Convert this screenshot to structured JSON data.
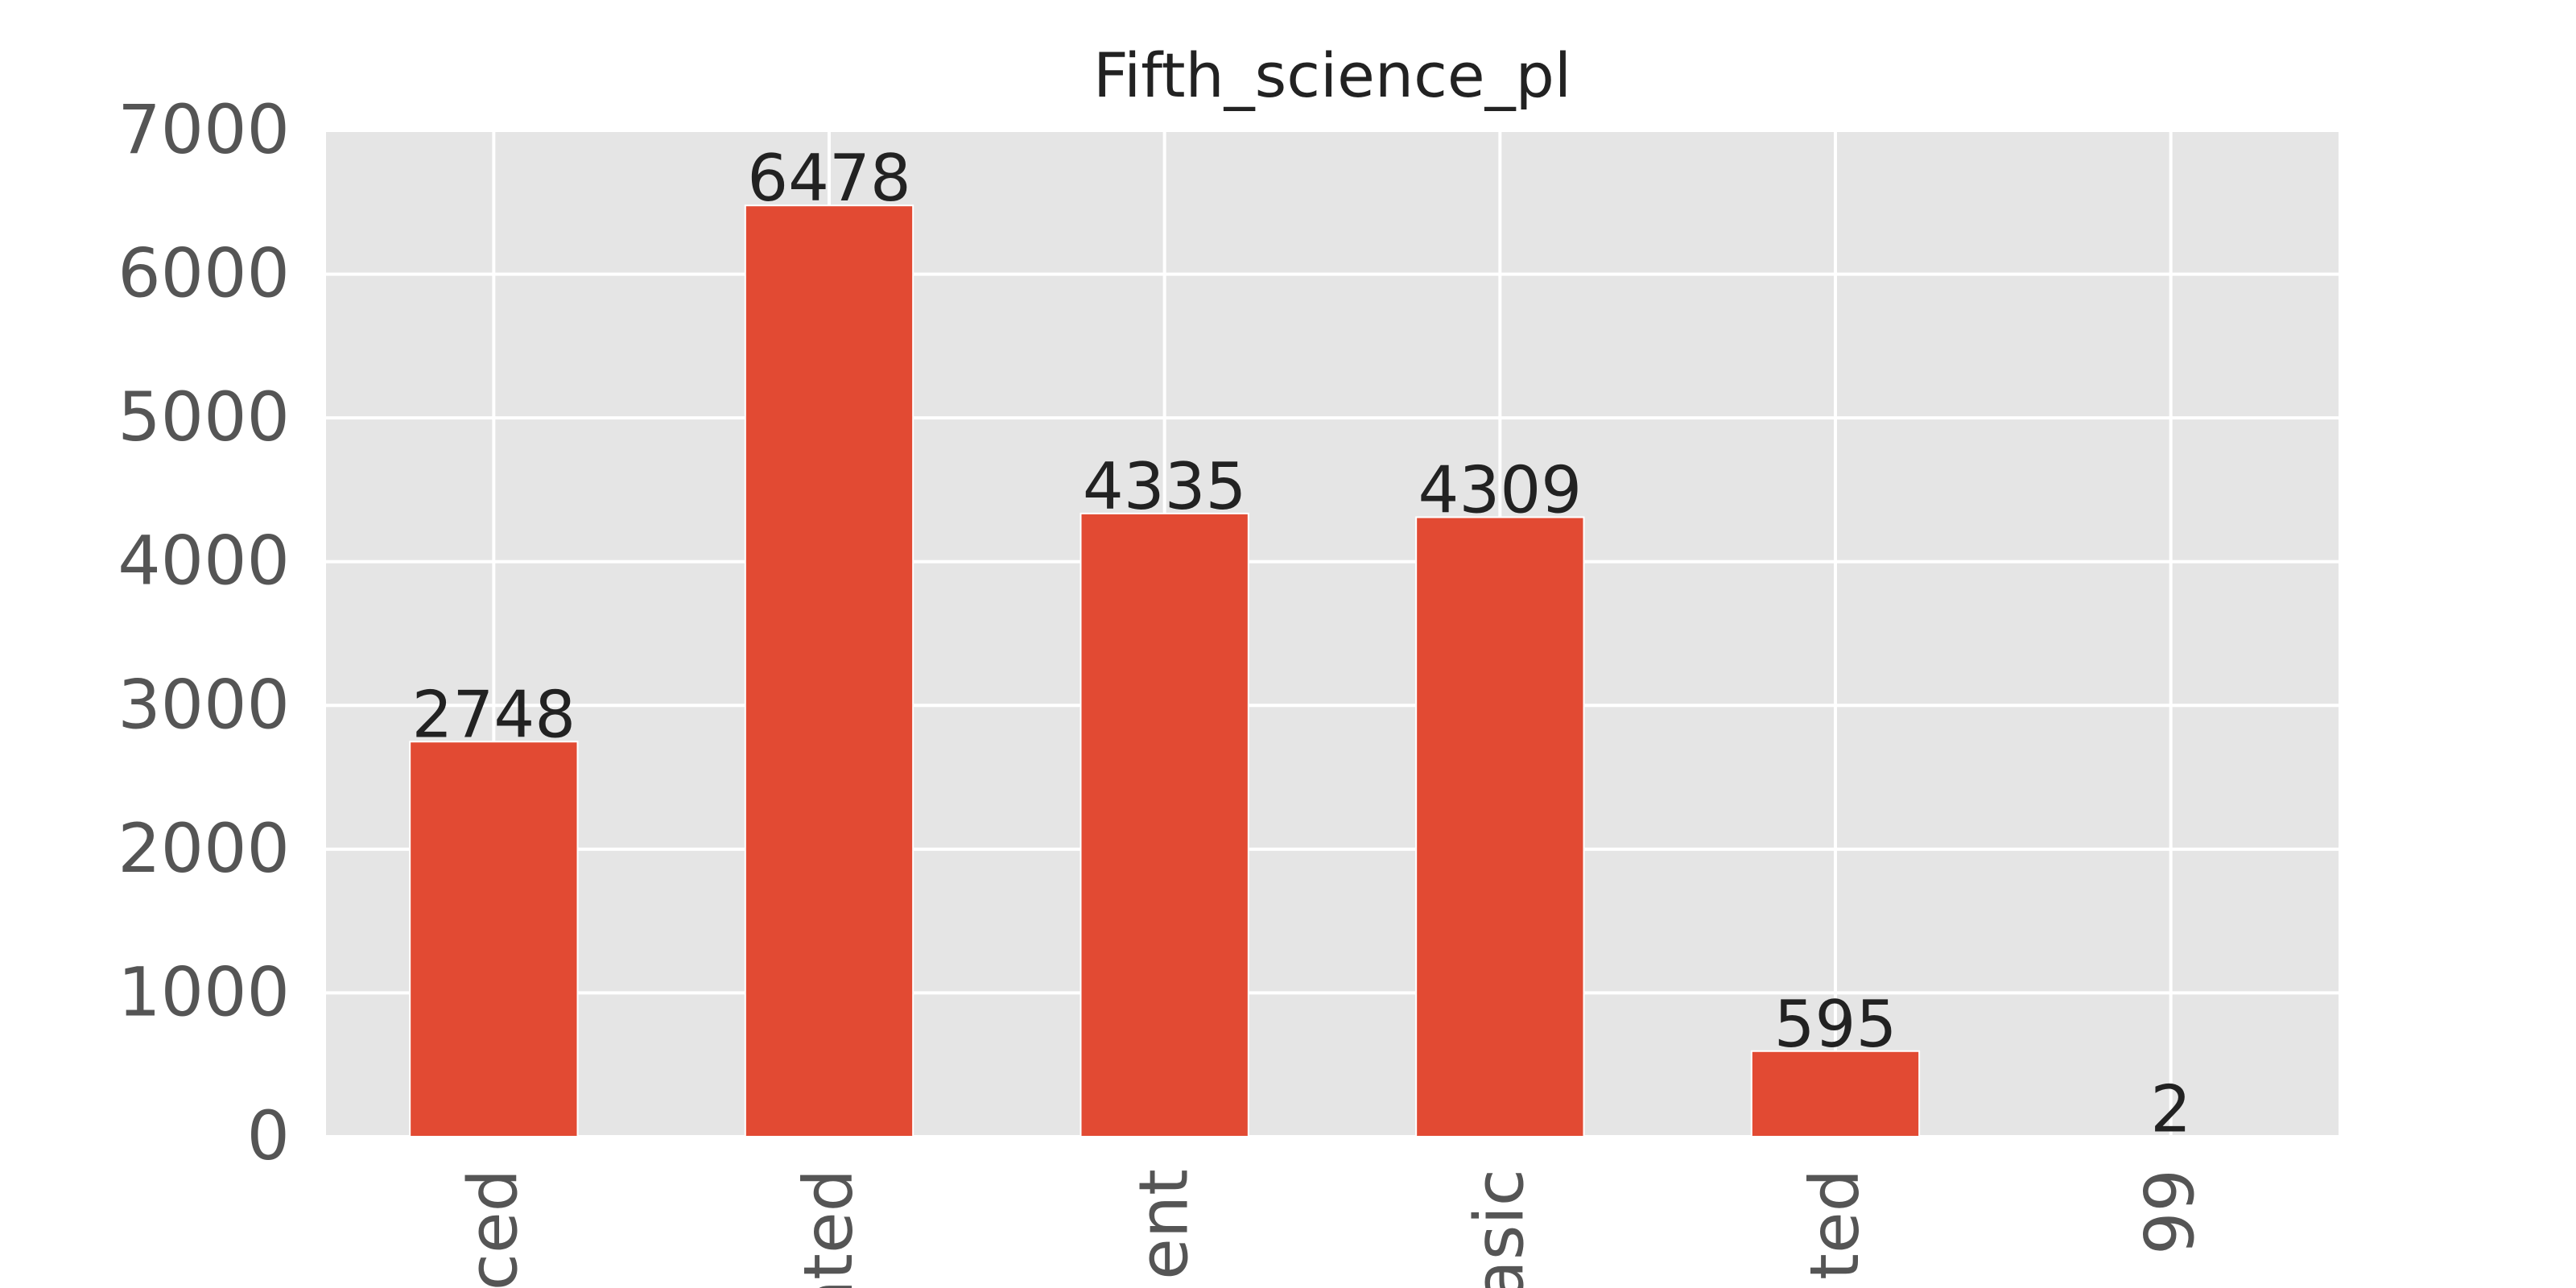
{
  "colors": {
    "background": "#ffffff",
    "plot_bg": "#e5e5e5",
    "grid": "#ffffff",
    "bar": "#e24a33",
    "tick_text": "#555555",
    "label_text": "#222222"
  },
  "chart_data": {
    "type": "bar",
    "title": "Fifth_science_pl",
    "xlabel": "",
    "ylabel": "",
    "categories": [
      "ced",
      "nted",
      "ent",
      "asic",
      "ted",
      "99"
    ],
    "values": [
      2748,
      6478,
      4335,
      4309,
      595,
      2
    ],
    "value_labels": [
      "2748",
      "6478",
      "4335",
      "4309",
      "595",
      "2"
    ],
    "ylim": [
      0,
      7000
    ],
    "yticks": [
      "0",
      "1000",
      "2000",
      "3000",
      "4000",
      "5000",
      "6000",
      "7000"
    ],
    "grid": true,
    "legend": "none",
    "x_tick_rotation": "vertical"
  }
}
